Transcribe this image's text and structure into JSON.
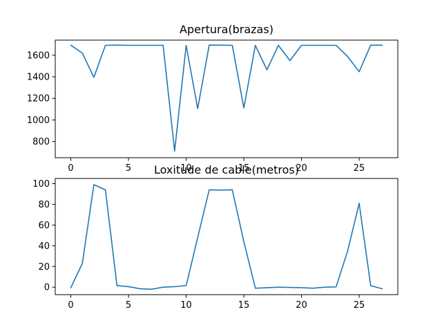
{
  "chart_data": [
    {
      "type": "line",
      "title": "Apertura(brazas)",
      "xlabel": "",
      "ylabel": "",
      "xlim": [
        -1.35,
        28.35
      ],
      "ylim": [
        650,
        1740
      ],
      "xticks": [
        0,
        5,
        10,
        15,
        20,
        25
      ],
      "yticks": [
        800,
        1000,
        1200,
        1400,
        1600
      ],
      "grid": false,
      "color": "#1f77b4",
      "x": [
        0,
        1,
        2,
        3,
        4,
        5,
        6,
        7,
        8,
        9,
        10,
        11,
        12,
        13,
        14,
        15,
        16,
        17,
        18,
        19,
        20,
        21,
        22,
        23,
        24,
        25,
        26,
        27
      ],
      "y": [
        1693,
        1619,
        1395,
        1692,
        1694,
        1692,
        1692,
        1692,
        1692,
        712,
        1691,
        1105,
        1694,
        1693,
        1692,
        1112,
        1691,
        1465,
        1691,
        1550,
        1692,
        1692,
        1692,
        1692,
        1588,
        1447,
        1693,
        1693
      ]
    },
    {
      "type": "line",
      "title": "Loxitude de cable(metros)",
      "xlabel": "",
      "ylabel": "",
      "xlim": [
        -1.35,
        28.35
      ],
      "ylim": [
        -7.2,
        105
      ],
      "xticks": [
        0,
        5,
        10,
        15,
        20,
        25
      ],
      "yticks": [
        0,
        20,
        40,
        60,
        80,
        100
      ],
      "grid": false,
      "color": "#1f77b4",
      "x": [
        0,
        1,
        2,
        3,
        4,
        5,
        6,
        7,
        8,
        9,
        10,
        11,
        12,
        13,
        14,
        15,
        16,
        17,
        18,
        19,
        20,
        21,
        22,
        23,
        24,
        25,
        26,
        27
      ],
      "y": [
        -0.5,
        23,
        99,
        94,
        1.5,
        0.5,
        -1.5,
        -2,
        0,
        0.5,
        1.5,
        48,
        94,
        93.8,
        94,
        44,
        -1,
        -0.5,
        0,
        -0.2,
        -0.5,
        -1,
        0,
        0.3,
        35,
        81,
        1.5,
        -1.5
      ]
    }
  ]
}
